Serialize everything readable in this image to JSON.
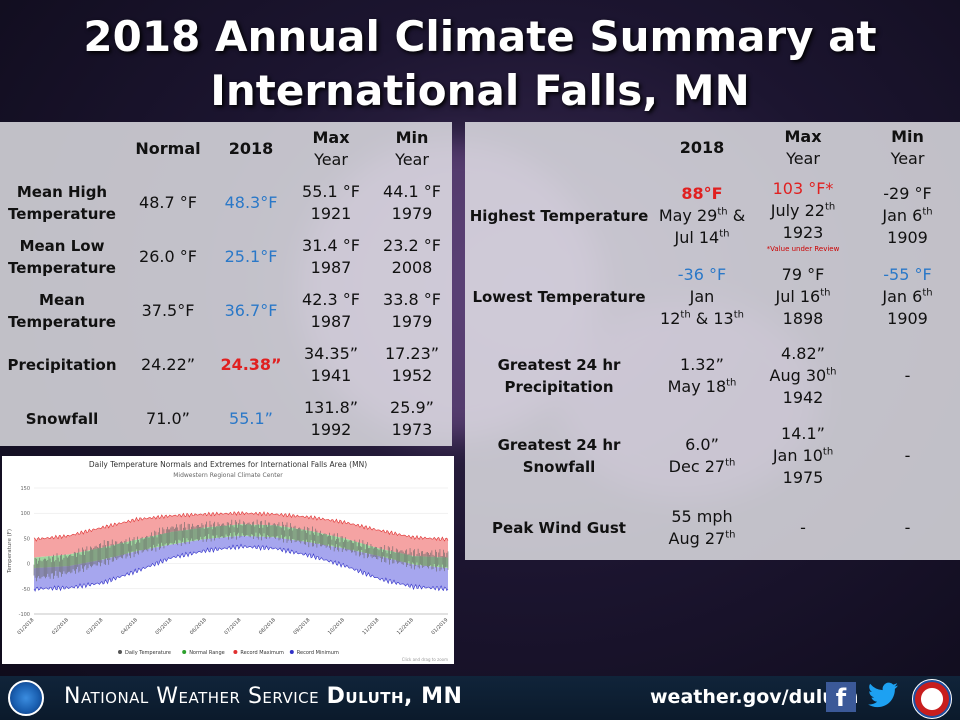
{
  "title": {
    "line1": "2018 Annual Climate Summary at",
    "line2": "International Falls, MN"
  },
  "left_table": {
    "headers": {
      "normal": "Normal",
      "y2018": "2018",
      "max": "Max",
      "max_sub": "Year",
      "min": "Min",
      "min_sub": "Year"
    },
    "rows": [
      {
        "label1": "Mean High",
        "label2": "Temperature",
        "normal": "48.7 °F",
        "y2018": "48.3°F",
        "max1": "55.1 °F",
        "max2": "1921",
        "min1": "44.1 °F",
        "min2": "1979"
      },
      {
        "label1": "Mean Low",
        "label2": "Temperature",
        "normal": "26.0 °F",
        "y2018": "25.1°F",
        "max1": "31.4 °F",
        "max2": "1987",
        "min1": "23.2 °F",
        "min2": "2008"
      },
      {
        "label1": "Mean",
        "label2": "Temperature",
        "normal": "37.5°F",
        "y2018": "36.7°F",
        "max1": "42.3 °F",
        "max2": "1987",
        "min1": "33.8 °F",
        "min2": "1979"
      },
      {
        "label1": "Precipitation",
        "label2": "",
        "normal": "24.22”",
        "y2018": "24.38”",
        "max1": "34.35”",
        "max2": "1941",
        "min1": "17.23”",
        "min2": "1952"
      },
      {
        "label1": "Snowfall",
        "label2": "",
        "normal": "71.0”",
        "y2018": "55.1”",
        "max1": "131.8”",
        "max2": "1992",
        "min1": "25.9”",
        "min2": "1973"
      }
    ],
    "colors": {
      "y2018_below": "#2a78c8",
      "y2018_above": "#e02020"
    }
  },
  "right_table": {
    "headers": {
      "y2018": "2018",
      "max": "Max",
      "max_sub": "Year",
      "min": "Min",
      "min_sub": "Year"
    },
    "rows": [
      {
        "label1": "Highest Temperature",
        "label2": "",
        "y2018_a": "88°F",
        "y2018_b": "May 29",
        "y2018_b_sup": "th",
        "y2018_b_tail": " &",
        "y2018_c": "Jul 14",
        "y2018_c_sup": "th",
        "max_a": "103 °F*",
        "max_b": "July 22",
        "max_b_sup": "th",
        "max_c": "1923",
        "max_note": "*Value under Review",
        "min_a": "-29 °F",
        "min_b": "Jan 6",
        "min_b_sup": "th",
        "min_c": "1909"
      },
      {
        "label1": "Lowest Temperature",
        "label2": "",
        "y2018_a": "-36 °F",
        "y2018_b": "Jan",
        "y2018_c": "12",
        "y2018_c_sup": "th",
        "y2018_c_mid": " & 13",
        "y2018_c_sup2": "th",
        "max_a": "79 °F",
        "max_b": "Jul 16",
        "max_b_sup": "th",
        "max_c": "1898",
        "min_a": "-55 °F",
        "min_b": "Jan 6",
        "min_b_sup": "th",
        "min_c": "1909"
      },
      {
        "label1": "Greatest 24 hr",
        "label2": "Precipitation",
        "y2018_a": "1.32”",
        "y2018_b": "May 18",
        "y2018_b_sup": "th",
        "max_a": "4.82”",
        "max_b": "Aug 30",
        "max_b_sup": "th",
        "max_c": "1942",
        "min_a": "-"
      },
      {
        "label1": "Greatest 24 hr",
        "label2": "Snowfall",
        "y2018_a": "6.0”",
        "y2018_b": "Dec 27",
        "y2018_b_sup": "th",
        "max_a": "14.1”",
        "max_b": "Jan 10",
        "max_b_sup": "th",
        "max_c": "1975",
        "min_a": "-"
      },
      {
        "label1": "Peak Wind Gust",
        "label2": "",
        "y2018_a": "55 mph",
        "y2018_b": "Aug 27",
        "y2018_b_sup": "th",
        "max_a": "-",
        "min_a": "-"
      }
    ]
  },
  "chart_data": {
    "type": "area",
    "title": "Daily Temperature Normals and Extremes for International Falls Area (MN)",
    "subtitle": "Midwestern Regional Climate Center",
    "ylabel": "Temperature (F)",
    "ylim": [
      -100,
      150
    ],
    "yticks": [
      150,
      100,
      50,
      0,
      -50,
      -100
    ],
    "categories": [
      "01/2018",
      "02/2018",
      "03/2018",
      "04/2018",
      "05/2018",
      "06/2018",
      "07/2018",
      "08/2018",
      "09/2018",
      "10/2018",
      "11/2018",
      "12/2018",
      "01/2019"
    ],
    "month_index": [
      0,
      1,
      2,
      3,
      4,
      5,
      6,
      7,
      8,
      9,
      10,
      11,
      12
    ],
    "series": [
      {
        "name": "Record Maximum",
        "color": "#e03030",
        "values": [
          48,
          55,
          72,
          88,
          95,
          98,
          100,
          98,
          92,
          82,
          66,
          52,
          48
        ]
      },
      {
        "name": "Normal Range",
        "color": "#2ca02c",
        "upper": [
          12,
          18,
          32,
          48,
          63,
          72,
          78,
          76,
          65,
          50,
          30,
          15,
          12
        ],
        "lower": [
          -9,
          -5,
          8,
          25,
          38,
          49,
          55,
          52,
          42,
          30,
          15,
          -2,
          -9
        ]
      },
      {
        "name": "Daily Temperature",
        "color": "#555555",
        "high": [
          5,
          15,
          38,
          46,
          72,
          76,
          80,
          78,
          66,
          48,
          30,
          22,
          20
        ],
        "low": [
          -30,
          -18,
          2,
          22,
          40,
          50,
          56,
          52,
          40,
          28,
          10,
          -4,
          -10
        ]
      },
      {
        "name": "Record Minimum",
        "color": "#3030c8",
        "values": [
          -50,
          -48,
          -38,
          -14,
          12,
          26,
          34,
          30,
          16,
          -4,
          -30,
          -46,
          -50
        ]
      }
    ],
    "legend": [
      "Daily Temperature",
      "Normal Range",
      "Record Maximum",
      "Record Minimum"
    ],
    "legend_position": "bottom",
    "credit": "Click and drag to zoom"
  },
  "footer": {
    "org_prefix": "National Weather Service ",
    "org_office": "Duluth, MN",
    "url": "weather.gov/duluth",
    "facebook_glyph": "f",
    "twitter_glyph": "🐦",
    "icons": [
      "noaa-logo",
      "facebook-icon",
      "twitter-icon",
      "nws-logo"
    ]
  }
}
